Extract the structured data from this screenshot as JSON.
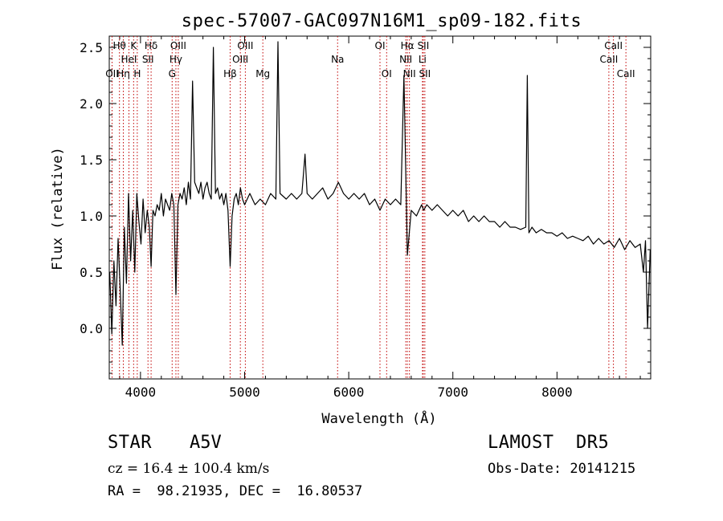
{
  "chart_data": {
    "type": "line",
    "title": "spec-57007-GAC097N16M1_sp09-182.fits",
    "xlabel": "Wavelength (Å)",
    "ylabel": "Flux (relative)",
    "xlim": [
      3700,
      8900
    ],
    "ylim": [
      -0.45,
      2.6
    ],
    "xticks": [
      4000,
      5000,
      6000,
      7000,
      8000
    ],
    "xtick_labels": [
      "4000",
      "5000",
      "6000",
      "7000",
      "8000"
    ],
    "yticks": [
      0.0,
      0.5,
      1.0,
      1.5,
      2.0,
      2.5
    ],
    "ytick_labels": [
      "0.0",
      "0.5",
      "1.0",
      "1.5",
      "2.0",
      "2.5"
    ],
    "grid": false,
    "series": [
      {
        "color": "#000000",
        "x": [
          3705,
          3725,
          3745,
          3765,
          3785,
          3805,
          3825,
          3845,
          3865,
          3885,
          3905,
          3925,
          3945,
          3965,
          3985,
          4005,
          4025,
          4045,
          4065,
          4085,
          4102,
          4120,
          4140,
          4160,
          4180,
          4200,
          4220,
          4240,
          4260,
          4280,
          4300,
          4320,
          4340,
          4360,
          4380,
          4400,
          4420,
          4440,
          4460,
          4480,
          4500,
          4520,
          4540,
          4560,
          4580,
          4600,
          4620,
          4640,
          4660,
          4680,
          4700,
          4720,
          4740,
          4760,
          4780,
          4800,
          4820,
          4840,
          4861,
          4880,
          4900,
          4920,
          4940,
          4960,
          4980,
          5000,
          5050,
          5100,
          5150,
          5200,
          5250,
          5300,
          5320,
          5340,
          5400,
          5450,
          5500,
          5550,
          5580,
          5600,
          5650,
          5700,
          5750,
          5800,
          5850,
          5900,
          5950,
          6000,
          6050,
          6100,
          6150,
          6200,
          6250,
          6300,
          6350,
          6400,
          6450,
          6500,
          6530,
          6563,
          6600,
          6650,
          6700,
          6720,
          6750,
          6800,
          6850,
          6900,
          6950,
          7000,
          7050,
          7100,
          7150,
          7200,
          7250,
          7300,
          7350,
          7400,
          7450,
          7500,
          7550,
          7600,
          7650,
          7700,
          7715,
          7730,
          7760,
          7800,
          7850,
          7900,
          7950,
          8000,
          8050,
          8100,
          8150,
          8200,
          8250,
          8300,
          8350,
          8400,
          8450,
          8500,
          8550,
          8600,
          8650,
          8700,
          8750,
          8800,
          8830,
          8850,
          8870,
          8895
        ],
        "y": [
          0.5,
          -0.05,
          0.6,
          0.2,
          0.8,
          0.35,
          -0.15,
          0.9,
          0.4,
          1.2,
          0.6,
          1.05,
          0.5,
          1.2,
          0.95,
          0.75,
          1.15,
          0.85,
          1.05,
          0.9,
          0.55,
          1.05,
          1.0,
          1.1,
          1.05,
          1.2,
          1.0,
          1.15,
          1.1,
          1.05,
          1.2,
          1.1,
          0.3,
          1.1,
          1.2,
          1.15,
          1.25,
          1.1,
          1.3,
          1.15,
          2.2,
          1.3,
          1.25,
          1.2,
          1.3,
          1.15,
          1.25,
          1.3,
          1.2,
          1.15,
          2.5,
          1.2,
          1.25,
          1.15,
          1.2,
          1.1,
          1.2,
          1.05,
          0.55,
          1.0,
          1.15,
          1.2,
          1.1,
          1.25,
          1.15,
          1.1,
          1.2,
          1.1,
          1.15,
          1.1,
          1.2,
          1.15,
          2.55,
          1.2,
          1.15,
          1.2,
          1.15,
          1.2,
          1.55,
          1.2,
          1.15,
          1.2,
          1.25,
          1.15,
          1.2,
          1.3,
          1.2,
          1.15,
          1.2,
          1.15,
          1.2,
          1.1,
          1.15,
          1.05,
          1.15,
          1.1,
          1.15,
          1.1,
          2.25,
          0.65,
          1.05,
          1.0,
          1.1,
          1.05,
          1.1,
          1.05,
          1.1,
          1.05,
          1.0,
          1.05,
          1.0,
          1.05,
          0.95,
          1.0,
          0.95,
          1.0,
          0.95,
          0.95,
          0.9,
          0.95,
          0.9,
          0.9,
          0.88,
          0.9,
          2.25,
          0.85,
          0.9,
          0.85,
          0.88,
          0.85,
          0.85,
          0.82,
          0.85,
          0.8,
          0.82,
          0.8,
          0.78,
          0.82,
          0.75,
          0.8,
          0.75,
          0.78,
          0.72,
          0.8,
          0.7,
          0.78,
          0.72,
          0.75,
          0.5,
          0.78,
          0.0,
          0.7
        ]
      }
    ],
    "line_markers": [
      {
        "wave": 3727,
        "label": "OII",
        "row": 3
      },
      {
        "wave": 3798,
        "label": "Hθ",
        "row": 1
      },
      {
        "wave": 3835,
        "label": "Hη",
        "row": 3
      },
      {
        "wave": 3889,
        "label": "HeI",
        "row": 2
      },
      {
        "wave": 3934,
        "label": "K",
        "row": 1
      },
      {
        "wave": 3969,
        "label": "H",
        "row": 3
      },
      {
        "wave": 4072,
        "label": "SII",
        "row": 2
      },
      {
        "wave": 4102,
        "label": "Hδ",
        "row": 1
      },
      {
        "wave": 4304,
        "label": "G",
        "row": 3
      },
      {
        "wave": 4340,
        "label": "Hγ",
        "row": 2
      },
      {
        "wave": 4363,
        "label": "OIII",
        "row": 1
      },
      {
        "wave": 4861,
        "label": "Hβ",
        "row": 3
      },
      {
        "wave": 4959,
        "label": "OIII",
        "row": 2
      },
      {
        "wave": 5007,
        "label": "OIII",
        "row": 1
      },
      {
        "wave": 5175,
        "label": "Mg",
        "row": 3
      },
      {
        "wave": 5893,
        "label": "Na",
        "row": 2
      },
      {
        "wave": 6300,
        "label": "OI",
        "row": 1
      },
      {
        "wave": 6364,
        "label": "OI",
        "row": 3
      },
      {
        "wave": 6548,
        "label": "NII",
        "row": 2
      },
      {
        "wave": 6563,
        "label": "Hα",
        "row": 1
      },
      {
        "wave": 6583,
        "label": "NII",
        "row": 3
      },
      {
        "wave": 6708,
        "label": "Li",
        "row": 2
      },
      {
        "wave": 6716,
        "label": "SII",
        "row": 1
      },
      {
        "wave": 6731,
        "label": "SII",
        "row": 3
      },
      {
        "wave": 8498,
        "label": "CaII",
        "row": 2
      },
      {
        "wave": 8542,
        "label": "CaII",
        "row": 1
      },
      {
        "wave": 8662,
        "label": "CaII",
        "row": 3
      }
    ]
  },
  "info": {
    "object_type": "STAR",
    "object_class": "A5V",
    "survey": "LAMOST  DR5",
    "redshift_text": "cz = 16.4 ± 100.4 km/s",
    "obs_date_text": "Obs-Date: 20141215",
    "coords_text": "RA =  98.21935, DEC =  16.80537"
  },
  "colors": {
    "spectrum": "#000000",
    "marker_line": "#c00000",
    "axis": "#000000",
    "background": "#ffffff"
  }
}
